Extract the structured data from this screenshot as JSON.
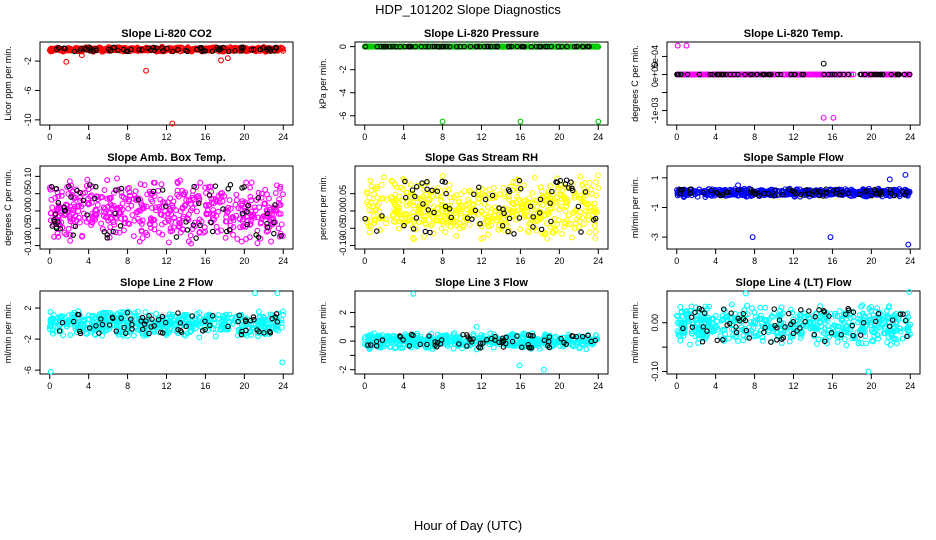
{
  "figure": {
    "title": "HDP_101202  Slope Diagnostics",
    "xlabel": "Hour of Day (UTC)"
  },
  "chart_data": [
    {
      "type": "scatter",
      "title": "Slope Li-820 CO2",
      "ylabel": "Licor ppm per min.",
      "xlim": [
        -1,
        25
      ],
      "ylim": [
        -10.7,
        0.6
      ],
      "xticks": [
        0,
        4,
        8,
        12,
        16,
        20,
        24
      ],
      "yticks": [
        -10,
        -6,
        -2
      ],
      "ytick_labels": [
        "-10",
        "-6",
        "-2"
      ],
      "color": "#ff0000",
      "band_center": -0.4,
      "band_spread": 0.35,
      "outliers": [
        [
          12.6,
          -10.5
        ],
        [
          9.9,
          -3.3
        ],
        [
          1.7,
          -2.1
        ],
        [
          17.6,
          -1.9
        ],
        [
          18.3,
          -1.6
        ],
        [
          3.3,
          -1.2
        ]
      ]
    },
    {
      "type": "scatter",
      "title": "Slope Li-820 Pressure",
      "ylabel": "kPa per min.",
      "xlim": [
        -1,
        25
      ],
      "ylim": [
        -6.8,
        0.4
      ],
      "xticks": [
        0,
        4,
        8,
        12,
        16,
        20,
        24
      ],
      "yticks": [
        -6,
        -4,
        -2,
        0
      ],
      "ytick_labels": [
        "-6",
        "-4",
        "-2",
        "0"
      ],
      "color": "#00cc00",
      "band_center": 0.0,
      "band_spread": 0.02,
      "outliers": [
        [
          8.0,
          -6.5
        ],
        [
          16.0,
          -6.5
        ],
        [
          24.0,
          -6.5
        ]
      ]
    },
    {
      "type": "scatter",
      "title": "Slope Li-820 Temp.",
      "ylabel": "degrees C per min.",
      "xlim": [
        -1,
        25
      ],
      "ylim": [
        -0.0014,
        0.0009
      ],
      "xticks": [
        0,
        4,
        8,
        12,
        16,
        20,
        24
      ],
      "yticks": [
        -0.001,
        -0.0005,
        0.0,
        0.0005
      ],
      "ytick_labels": [
        "-1e-03",
        "",
        "0e+00",
        "5e-04"
      ],
      "color": "#ff00ff",
      "band_center": 0.0,
      "band_spread": 0.0,
      "outliers": [
        [
          0.1,
          0.0008
        ],
        [
          1.0,
          0.0008
        ],
        [
          15.1,
          0.0003
        ],
        [
          15.1,
          -0.0012
        ],
        [
          16.1,
          -0.0012
        ]
      ]
    },
    {
      "type": "scatter",
      "title": "Slope Amb. Box Temp.",
      "ylabel": "degrees C per min.",
      "xlim": [
        -1,
        25
      ],
      "ylim": [
        -0.11,
        0.13
      ],
      "xticks": [
        0,
        4,
        8,
        12,
        16,
        20,
        24
      ],
      "yticks": [
        -0.1,
        -0.05,
        0.0,
        0.05,
        0.1
      ],
      "ytick_labels": [
        "-0.10",
        "-0.05",
        "0.00",
        "0.05",
        "0.10"
      ],
      "color": "#ff00ff",
      "band_center": 0.0,
      "band_spread": 0.1,
      "outliers": []
    },
    {
      "type": "scatter",
      "title": "Slope Gas Stream RH",
      "ylabel": "percent per min.",
      "xlim": [
        -1,
        25
      ],
      "ylim": [
        -0.11,
        0.13
      ],
      "xticks": [
        0,
        4,
        8,
        12,
        16,
        20,
        24
      ],
      "yticks": [
        -0.1,
        -0.05,
        0.0,
        0.05
      ],
      "ytick_labels": [
        "-0.10",
        "-0.05",
        "0.00",
        "0.05"
      ],
      "color": "#ffff00",
      "band_center": 0.01,
      "band_spread": 0.1,
      "outliers": []
    },
    {
      "type": "scatter",
      "title": "Slope Sample Flow",
      "ylabel": "ml/min per min.",
      "xlim": [
        -1,
        25
      ],
      "ylim": [
        -3.8,
        1.8
      ],
      "xticks": [
        0,
        4,
        8,
        12,
        16,
        20,
        24
      ],
      "yticks": [
        -3,
        -1,
        1
      ],
      "ytick_labels": [
        "-3",
        "-1",
        "1"
      ],
      "color": "#0000ff",
      "band_center": 0.0,
      "band_spread": 0.3,
      "outliers": [
        [
          7.8,
          -3.0
        ],
        [
          15.8,
          -3.0
        ],
        [
          23.8,
          -3.5
        ],
        [
          23.5,
          1.2
        ],
        [
          21.9,
          0.9
        ],
        [
          6.3,
          0.5
        ]
      ]
    },
    {
      "type": "scatter",
      "title": "Slope Line 2 Flow",
      "ylabel": "ml/min per min.",
      "xlim": [
        -1,
        25
      ],
      "ylim": [
        -6.5,
        4.2
      ],
      "xticks": [
        0,
        4,
        8,
        12,
        16,
        20,
        24
      ],
      "yticks": [
        -6,
        -2,
        2
      ],
      "ytick_labels": [
        "-6",
        "-2",
        "2"
      ],
      "color": "#00ffff",
      "band_center": 0.0,
      "band_spread": 1.8,
      "outliers": [
        [
          0.1,
          -6.2
        ],
        [
          21.1,
          3.9
        ],
        [
          23.4,
          3.9
        ],
        [
          23.9,
          -5.0
        ]
      ]
    },
    {
      "type": "scatter",
      "title": "Slope Line 3 Flow",
      "ylabel": "ml/min per min.",
      "xlim": [
        -1,
        25
      ],
      "ylim": [
        -2.3,
        3.5
      ],
      "xticks": [
        0,
        4,
        8,
        12,
        16,
        20,
        24
      ],
      "yticks": [
        -2,
        -1,
        0,
        1,
        2
      ],
      "ytick_labels": [
        "-2",
        "",
        "0",
        "",
        "2"
      ],
      "color": "#00ffff",
      "band_center": 0.0,
      "band_spread": 0.6,
      "outliers": [
        [
          5.0,
          3.3
        ],
        [
          18.4,
          -2.0
        ],
        [
          15.9,
          -1.7
        ],
        [
          11.5,
          1.0
        ]
      ]
    },
    {
      "type": "scatter",
      "title": "Slope Line 4 (LT) Flow",
      "ylabel": "ml/min per min.",
      "xlim": [
        -1,
        25
      ],
      "ylim": [
        -0.105,
        0.065
      ],
      "xticks": [
        0,
        4,
        8,
        12,
        16,
        20,
        24
      ],
      "yticks": [
        -0.1,
        -0.05,
        0.0
      ],
      "ytick_labels": [
        "-0.10",
        "",
        "0.00"
      ],
      "color": "#00ffff",
      "band_center": -0.005,
      "band_spread": 0.045,
      "outliers": [
        [
          23.9,
          0.063
        ],
        [
          19.7,
          -0.1
        ],
        [
          7.1,
          0.06
        ]
      ]
    }
  ]
}
